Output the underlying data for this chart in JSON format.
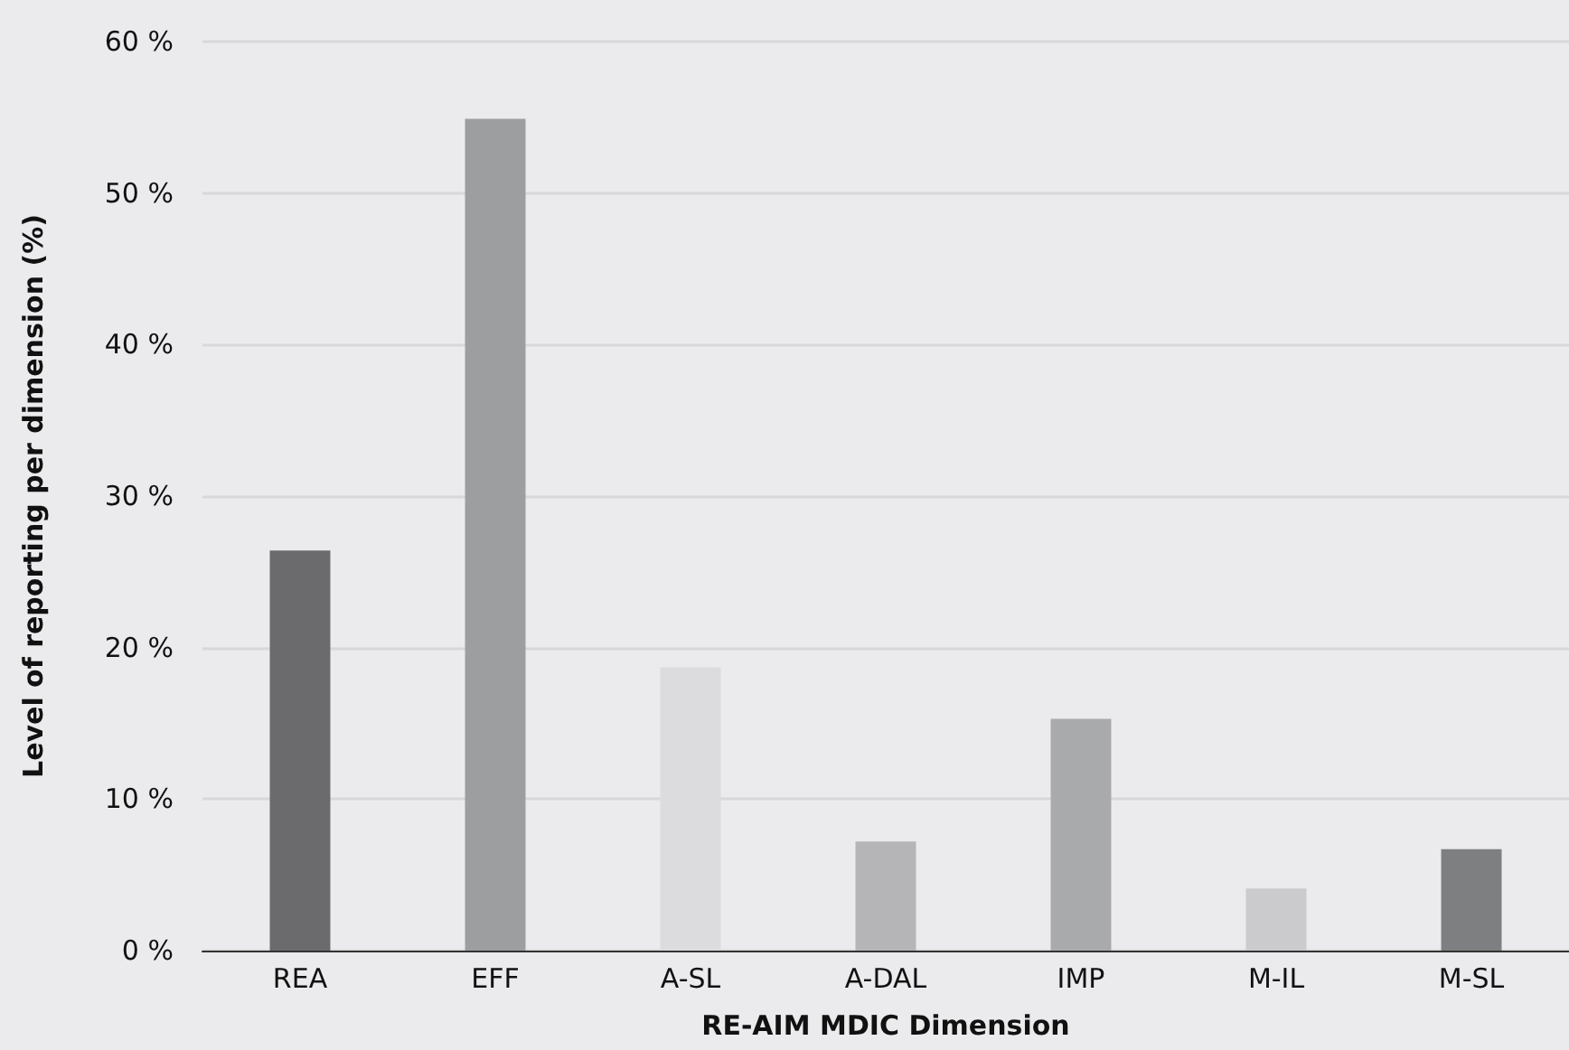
{
  "chart_data": {
    "type": "bar",
    "xlabel": "RE-AIM MDIC Dimension",
    "ylabel": "Level of reporting per dimension (%)",
    "categories": [
      "REA",
      "EFF",
      "A-SL",
      "A-DAL",
      "IMP",
      "M-IL",
      "M-SL"
    ],
    "values": [
      26.4,
      54.9,
      18.7,
      7.2,
      15.3,
      4.1,
      6.7
    ],
    "colors": [
      "#6b6b6d",
      "#9d9ea0",
      "#dcdcde",
      "#b5b5b7",
      "#a9aaac",
      "#cbcbcd",
      "#7e7f81"
    ],
    "ylim": [
      0,
      60
    ],
    "yticks": [
      {
        "value": 0,
        "label": "0 %"
      },
      {
        "value": 10,
        "label": "10 %"
      },
      {
        "value": 20,
        "label": "20 %"
      },
      {
        "value": 30,
        "label": "30 %"
      },
      {
        "value": 40,
        "label": "40 %"
      },
      {
        "value": 50,
        "label": "50 %"
      },
      {
        "value": 60,
        "label": "60 %"
      }
    ],
    "grid": "y"
  }
}
